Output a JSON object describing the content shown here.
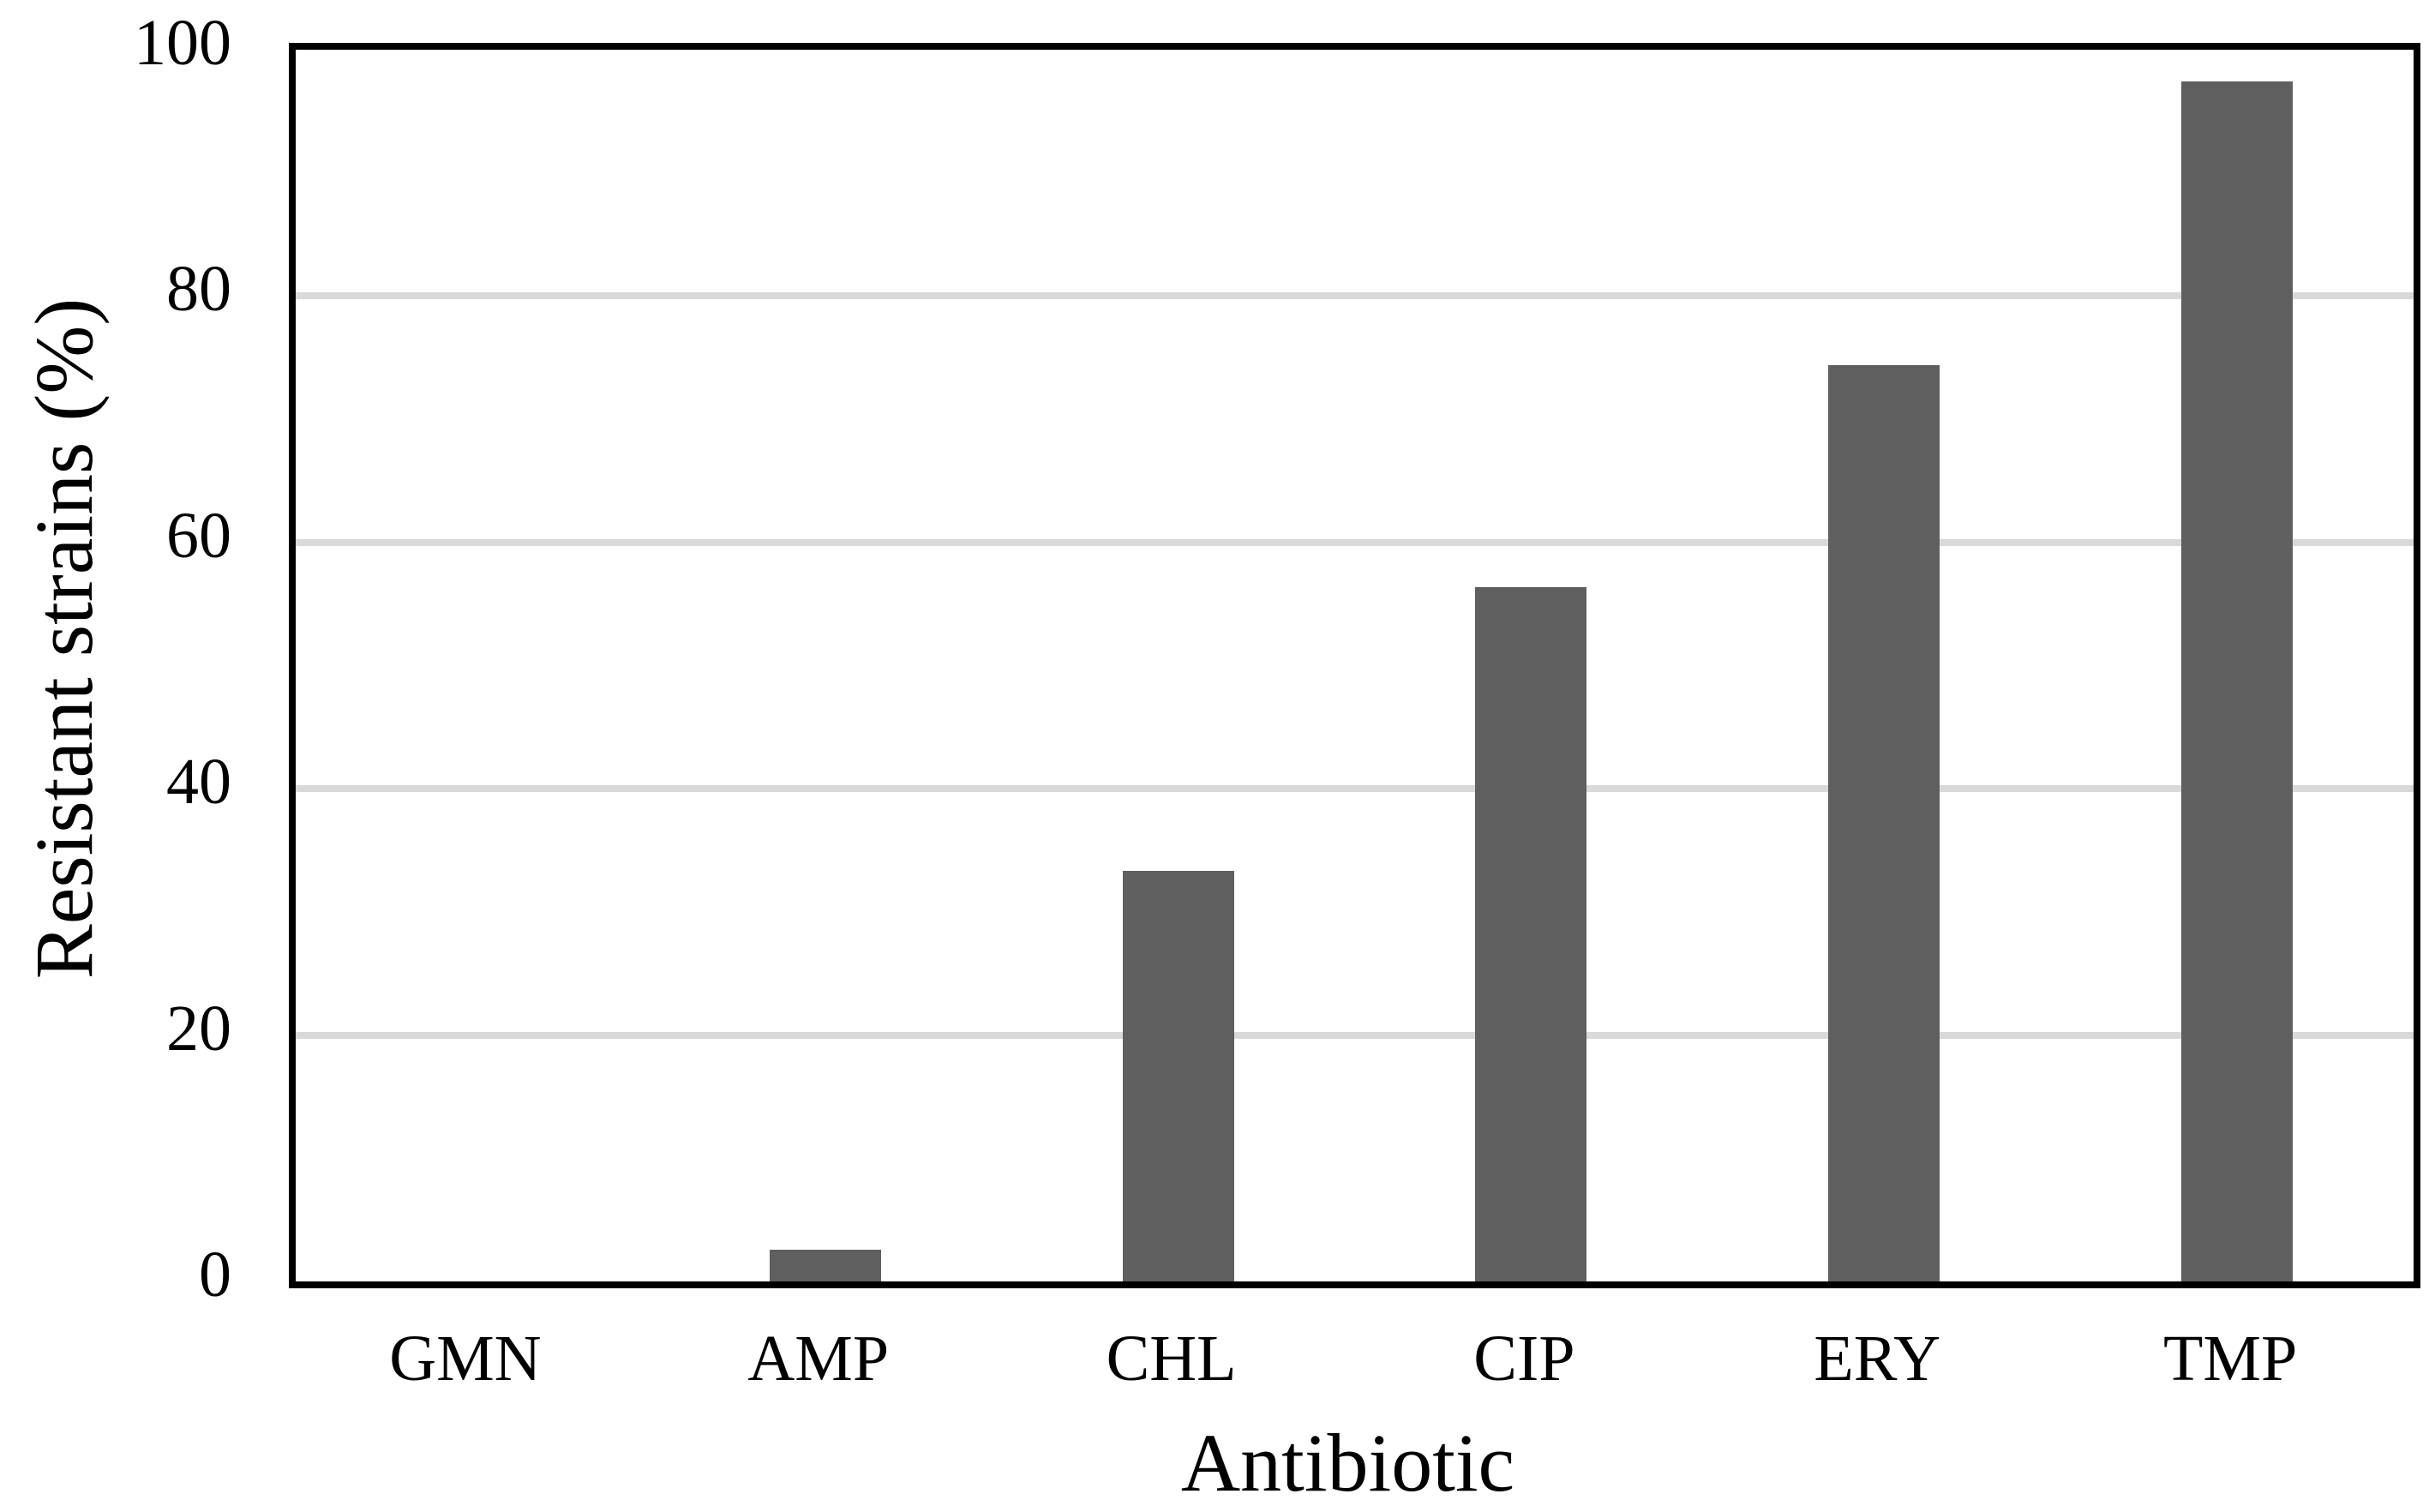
{
  "chart_data": {
    "type": "bar",
    "title": "",
    "xlabel": "Antibiotic",
    "ylabel": "Resistant strains (%)",
    "categories": [
      "GMN",
      "AMP",
      "CHL",
      "CIP",
      "ERY",
      "TMP"
    ],
    "values": [
      0,
      2.6,
      33.3,
      56.4,
      74.4,
      97.4
    ],
    "ylim": [
      0,
      100
    ],
    "yticks": [
      0,
      20,
      40,
      60,
      80,
      100
    ],
    "grid": "horizontal-major",
    "legend_position": "none",
    "bar_color": "#5F5F5F",
    "gridline_color": "#D9D9D9",
    "axis_border_color": "#000000",
    "plot_background": "#FFFFFF"
  }
}
